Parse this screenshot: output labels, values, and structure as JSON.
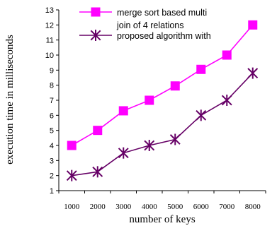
{
  "chart_data": {
    "type": "line",
    "title": "",
    "xlabel": "number of keys",
    "ylabel": "execution time in milliseconds",
    "categories": [
      "1000",
      "2000",
      "3000",
      "4000",
      "5000",
      "6000",
      "7000",
      "8000"
    ],
    "ylim": [
      1,
      13
    ],
    "yticks": [
      "1",
      "2",
      "3",
      "4",
      "5",
      "6",
      "7",
      "8",
      "9",
      "10",
      "11",
      "12",
      "13"
    ],
    "grid": false,
    "legend_position": "top-right",
    "series": [
      {
        "name": "merge sort based multi join of 4 relations",
        "legend_lines": [
          "merge sort based multi",
          "join of 4 relations"
        ],
        "marker": "square",
        "color": "#ff00ff",
        "values": [
          4,
          5,
          6.3,
          7,
          7.95,
          9.05,
          10,
          12
        ]
      },
      {
        "name": "proposed algorithm with",
        "legend_lines": [
          "proposed algorithm with"
        ],
        "marker": "star",
        "color": "#660066",
        "values": [
          2,
          2.25,
          3.5,
          4,
          4.4,
          6,
          7,
          8.8
        ]
      }
    ]
  }
}
